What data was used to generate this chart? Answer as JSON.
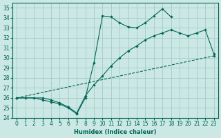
{
  "xlabel": "Humidex (Indice chaleur)",
  "xlim": [
    -0.5,
    23.5
  ],
  "ylim": [
    24,
    35.5
  ],
  "yticks": [
    24,
    25,
    26,
    27,
    28,
    29,
    30,
    31,
    32,
    33,
    34,
    35
  ],
  "xticks": [
    0,
    1,
    2,
    3,
    4,
    5,
    6,
    7,
    8,
    9,
    10,
    11,
    12,
    13,
    14,
    15,
    16,
    17,
    18,
    19,
    20,
    21,
    22,
    23
  ],
  "bg_color": "#cce8e4",
  "line_color": "#006655",
  "grid_color": "#a0cccc",
  "series": [
    {
      "x": [
        0,
        1,
        2,
        3,
        4,
        5,
        6,
        7,
        8,
        9,
        10,
        11,
        12,
        13,
        14,
        15,
        16,
        17,
        18
      ],
      "y": [
        26,
        26,
        26,
        25.8,
        25.6,
        25.4,
        25.0,
        24.4,
        26.0,
        29.5,
        34.2,
        34.1,
        33.5,
        33.1,
        33.0,
        33.5,
        34.2,
        34.9,
        34.1
      ],
      "linestyle": "-"
    },
    {
      "x": [
        0,
        3,
        4,
        5,
        6,
        7,
        8,
        9,
        10,
        11,
        12,
        13,
        14,
        15,
        16,
        17,
        18,
        19,
        20,
        21,
        22,
        23
      ],
      "y": [
        26,
        26,
        25.8,
        25.5,
        25.1,
        24.5,
        26.2,
        27.3,
        28.2,
        29.2,
        30.0,
        30.7,
        31.2,
        31.8,
        32.2,
        32.5,
        32.8,
        32.5,
        32.2,
        32.5,
        32.8,
        30.4
      ],
      "linestyle": "-"
    },
    {
      "x": [
        0,
        23
      ],
      "y": [
        26,
        30.2
      ],
      "linestyle": "--"
    }
  ]
}
